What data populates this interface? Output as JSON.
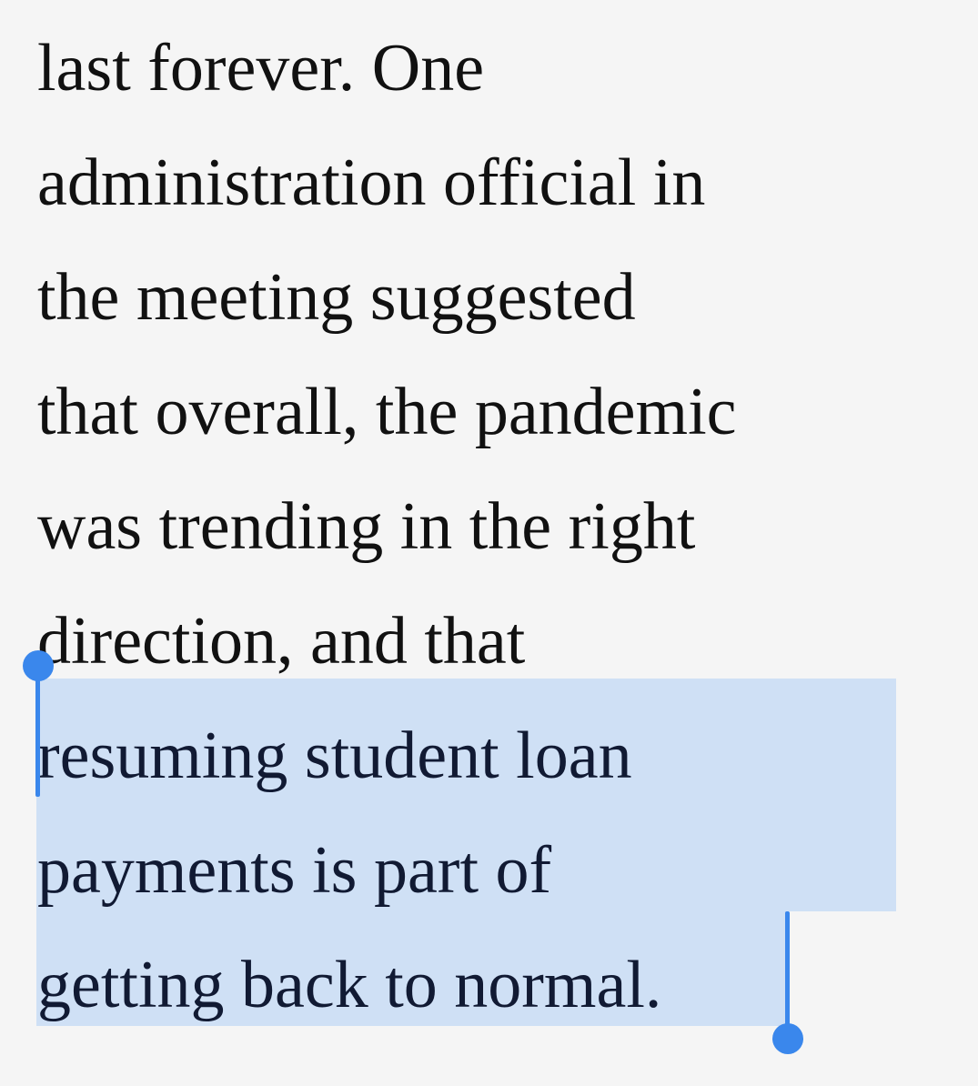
{
  "article": {
    "lines": [
      "last forever. One",
      "administration official in",
      "the meeting suggested",
      "that overall, the pandemic",
      "was trending in the right",
      "direction, and that",
      "resuming student loan",
      "payments is part of",
      "getting back to normal."
    ]
  },
  "selection": {
    "color": "#cfe0f5",
    "handle_color": "#3a87ec",
    "start_handle_icon": "selection-start-handle-icon",
    "end_handle_icon": "selection-end-handle-icon"
  }
}
